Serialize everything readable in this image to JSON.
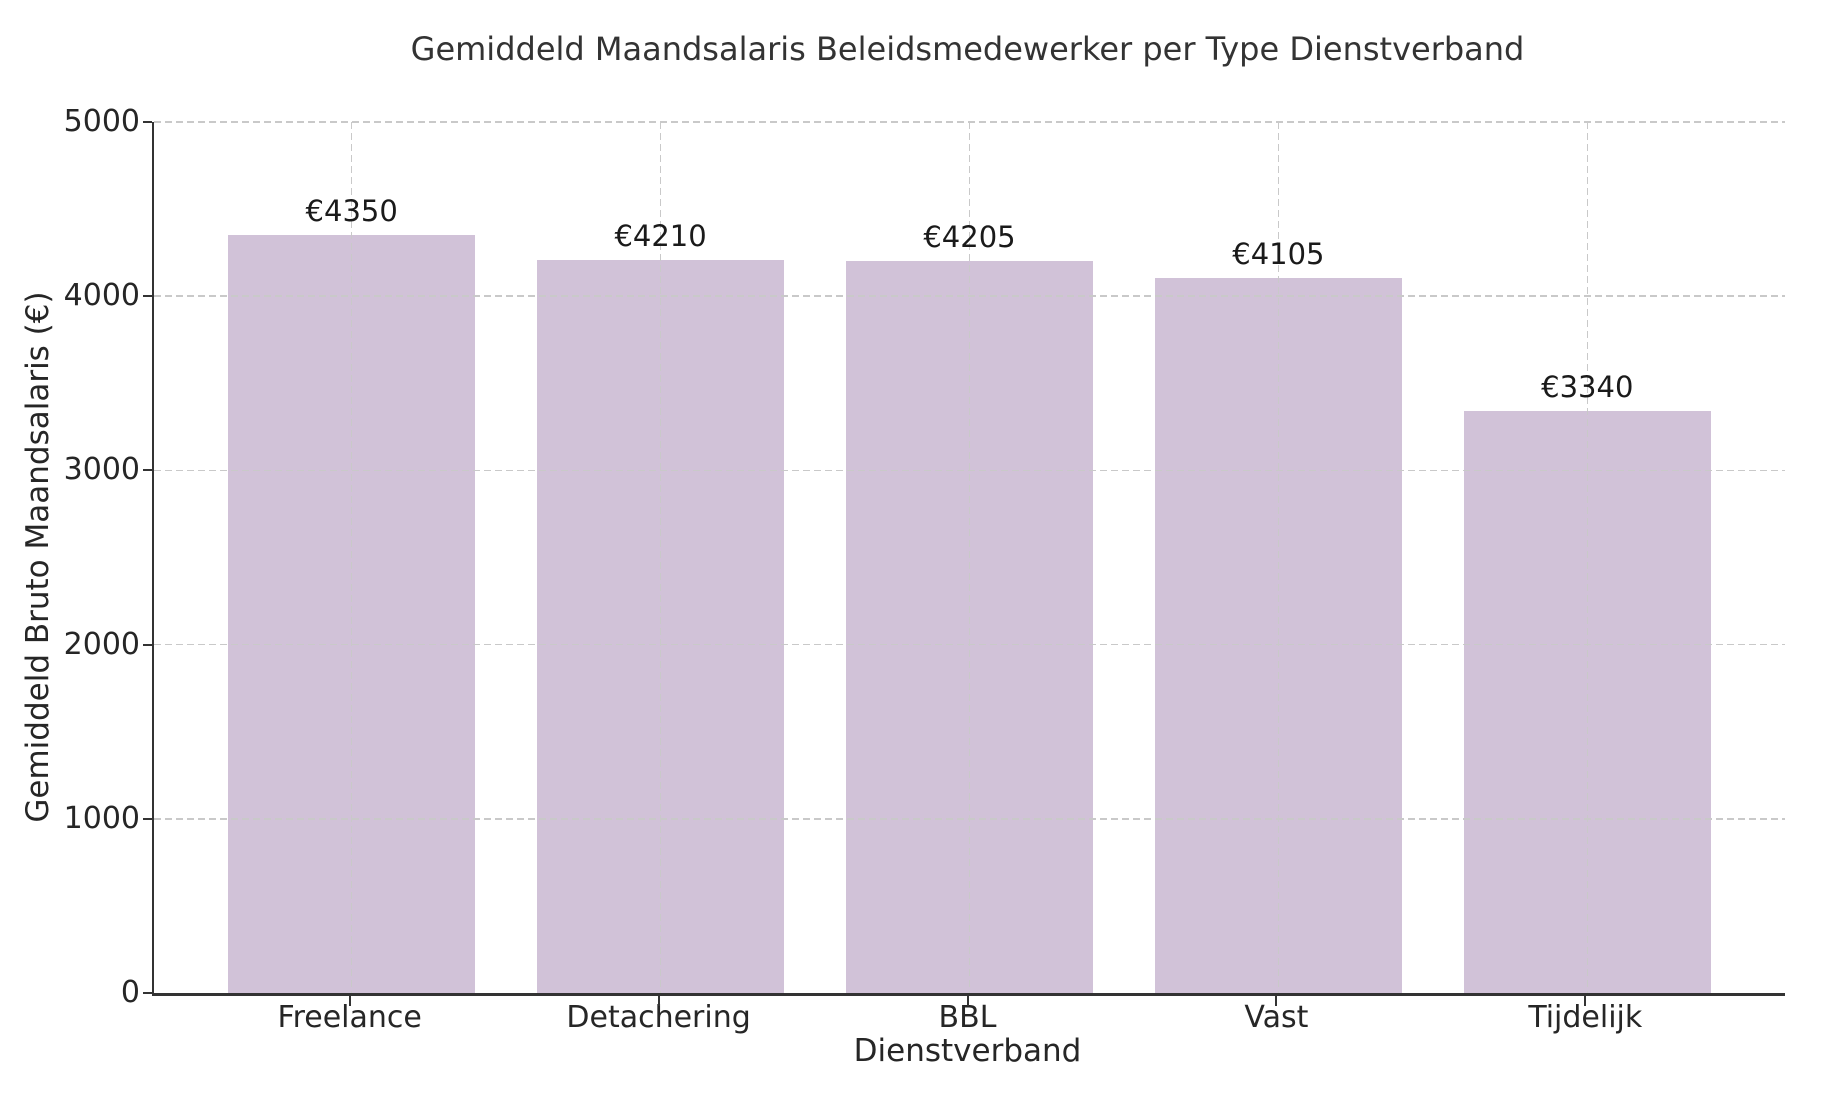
{
  "chart_data": {
    "type": "bar",
    "title": "Gemiddeld Maandsalaris Beleidsmedewerker per Type Dienstverband",
    "xlabel": "Dienstverband",
    "ylabel": "Gemiddeld Bruto Maandsalaris (€)",
    "categories": [
      "Freelance",
      "Detachering",
      "BBL",
      "Vast",
      "Tijdelijk"
    ],
    "values": [
      4350,
      4210,
      4205,
      4105,
      3340
    ],
    "bar_labels": [
      "€4350",
      "€4210",
      "€4205",
      "€4105",
      "€3340"
    ],
    "currency_prefix": "€",
    "ylim": [
      0,
      5000
    ],
    "yticks": [
      0,
      1000,
      2000,
      3000,
      4000,
      5000
    ],
    "grid": "dashed horizontal and vertical gridlines drawn above bars",
    "legend": "none",
    "colors": {
      "bar_fill": "#d1c2d8",
      "gridline": "#c9c9c9",
      "spine": "#333333",
      "text": "#2e2e2e"
    }
  }
}
